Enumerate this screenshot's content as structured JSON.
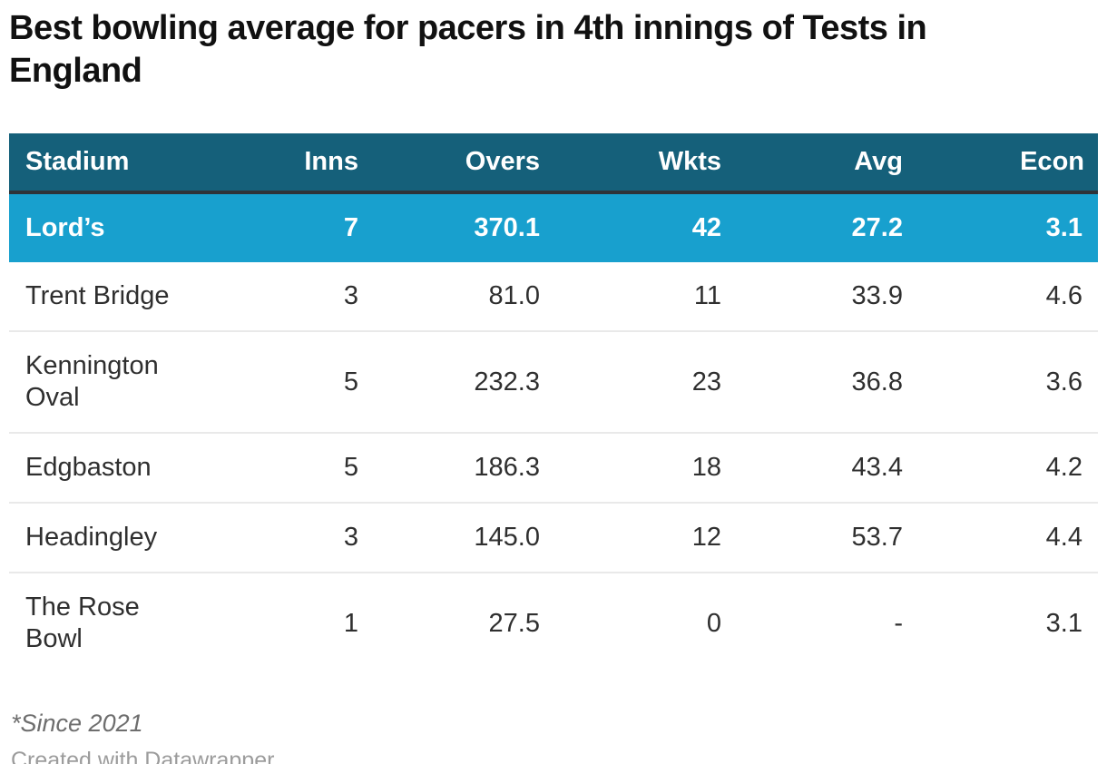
{
  "title": "Best bowling average for pacers in 4th innings of Tests in England",
  "chart_data": {
    "type": "table",
    "title": "Best bowling average for pacers in 4th innings of Tests in England",
    "columns": [
      {
        "key": "stadium",
        "label": "Stadium",
        "align": "left"
      },
      {
        "key": "inns",
        "label": "Inns",
        "align": "right"
      },
      {
        "key": "overs",
        "label": "Overs",
        "align": "right"
      },
      {
        "key": "wkts",
        "label": "Wkts",
        "align": "right"
      },
      {
        "key": "avg",
        "label": "Avg",
        "align": "right"
      },
      {
        "key": "econ",
        "label": "Econ",
        "align": "right"
      }
    ],
    "rows": [
      {
        "stadium": "Lord’s",
        "inns": "7",
        "overs": "370.1",
        "wkts": "42",
        "avg": "27.2",
        "econ": "3.1",
        "highlight": true
      },
      {
        "stadium": "Trent Bridge",
        "inns": "3",
        "overs": "81.0",
        "wkts": "11",
        "avg": "33.9",
        "econ": "4.6",
        "highlight": false
      },
      {
        "stadium": "Kennington Oval",
        "inns": "5",
        "overs": "232.3",
        "wkts": "23",
        "avg": "36.8",
        "econ": "3.6",
        "highlight": false
      },
      {
        "stadium": "Edgbaston",
        "inns": "5",
        "overs": "186.3",
        "wkts": "18",
        "avg": "43.4",
        "econ": "4.2",
        "highlight": false
      },
      {
        "stadium": "Headingley",
        "inns": "3",
        "overs": "145.0",
        "wkts": "12",
        "avg": "53.7",
        "econ": "4.4",
        "highlight": false
      },
      {
        "stadium": "The Rose Bowl",
        "inns": "1",
        "overs": "27.5",
        "wkts": "0",
        "avg": "-",
        "econ": "3.1",
        "highlight": false
      }
    ]
  },
  "footnote": "*Since 2021",
  "credit": "Created with Datawrapper",
  "colors": {
    "header_bg": "#15607a",
    "header_text": "#ffffff",
    "highlight_bg": "#18a0ce",
    "highlight_text": "#ffffff",
    "body_text": "#2f2f2f",
    "separator": "#e9e9e9",
    "header_border": "#2e3338",
    "footnote_color": "#6e6e6e",
    "credit_color": "#9c9c9c",
    "title_color": "#111111"
  }
}
